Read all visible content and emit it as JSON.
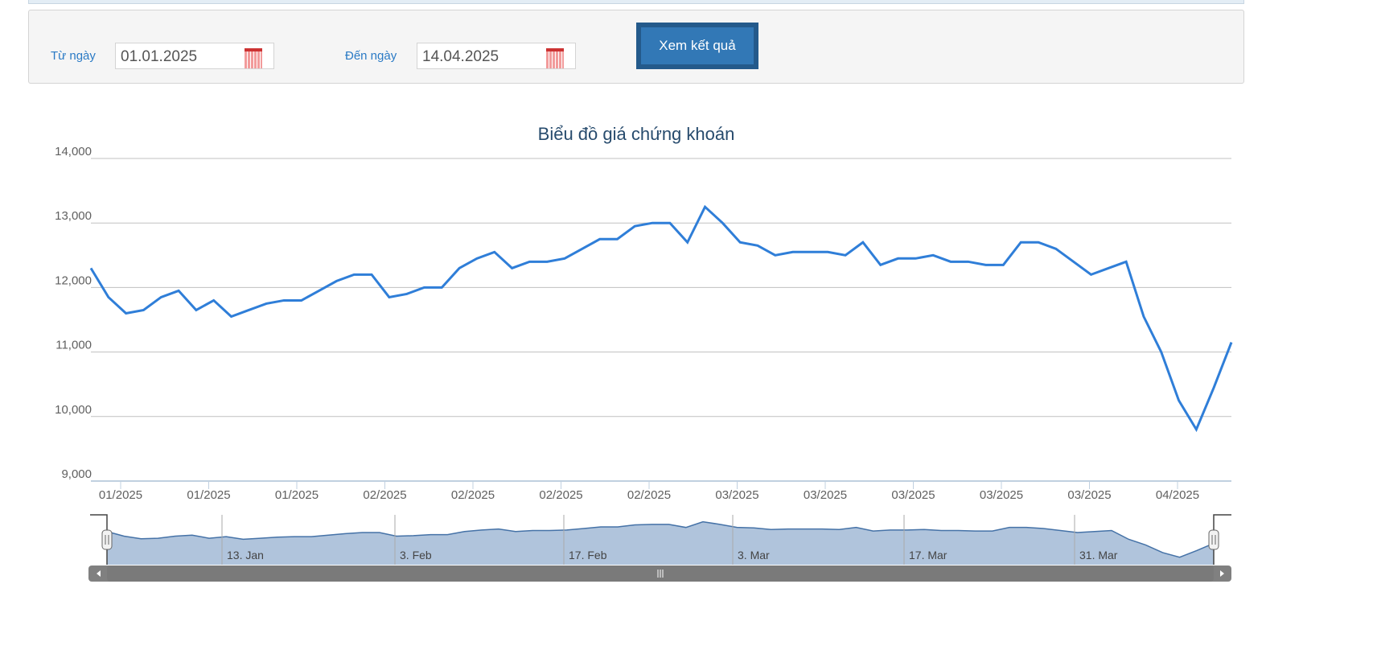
{
  "form": {
    "from_label": "Từ ngày",
    "from_value": "01.01.2025",
    "to_label": "Đến ngày",
    "to_value": "14.04.2025",
    "submit": "Xem kết quả"
  },
  "chart_data": {
    "type": "line",
    "title": "Biểu đồ giá chứng khoán",
    "ylim": [
      9000,
      14000
    ],
    "yticks": [
      "9,000",
      "10,000",
      "11,000",
      "12,000",
      "13,000",
      "14,000"
    ],
    "ytick_values": [
      9000,
      10000,
      11000,
      12000,
      13000,
      14000
    ],
    "xtick_labels": [
      "01/2025",
      "01/2025",
      "01/2025",
      "02/2025",
      "02/2025",
      "02/2025",
      "02/2025",
      "03/2025",
      "03/2025",
      "03/2025",
      "03/2025",
      "03/2025",
      "04/2025"
    ],
    "navigator_labels": [
      "13. Jan",
      "3. Feb",
      "17. Feb",
      "3. Mar",
      "17. Mar",
      "31. Mar"
    ],
    "color": "#2f7ed8",
    "values": [
      12300,
      11850,
      11600,
      11650,
      11850,
      11950,
      11650,
      11800,
      11550,
      11650,
      11750,
      11800,
      11800,
      11950,
      12100,
      12200,
      12200,
      11850,
      11900,
      12000,
      12000,
      12300,
      12450,
      12550,
      12300,
      12400,
      12400,
      12450,
      12600,
      12750,
      12750,
      12950,
      13000,
      13000,
      12700,
      13250,
      13000,
      12700,
      12650,
      12500,
      12550,
      12550,
      12550,
      12500,
      12700,
      12350,
      12450,
      12450,
      12500,
      12400,
      12400,
      12350,
      12350,
      12700,
      12700,
      12600,
      12400,
      12200,
      12300,
      12400,
      11550,
      11000,
      10250,
      9800,
      10450,
      11150
    ]
  }
}
